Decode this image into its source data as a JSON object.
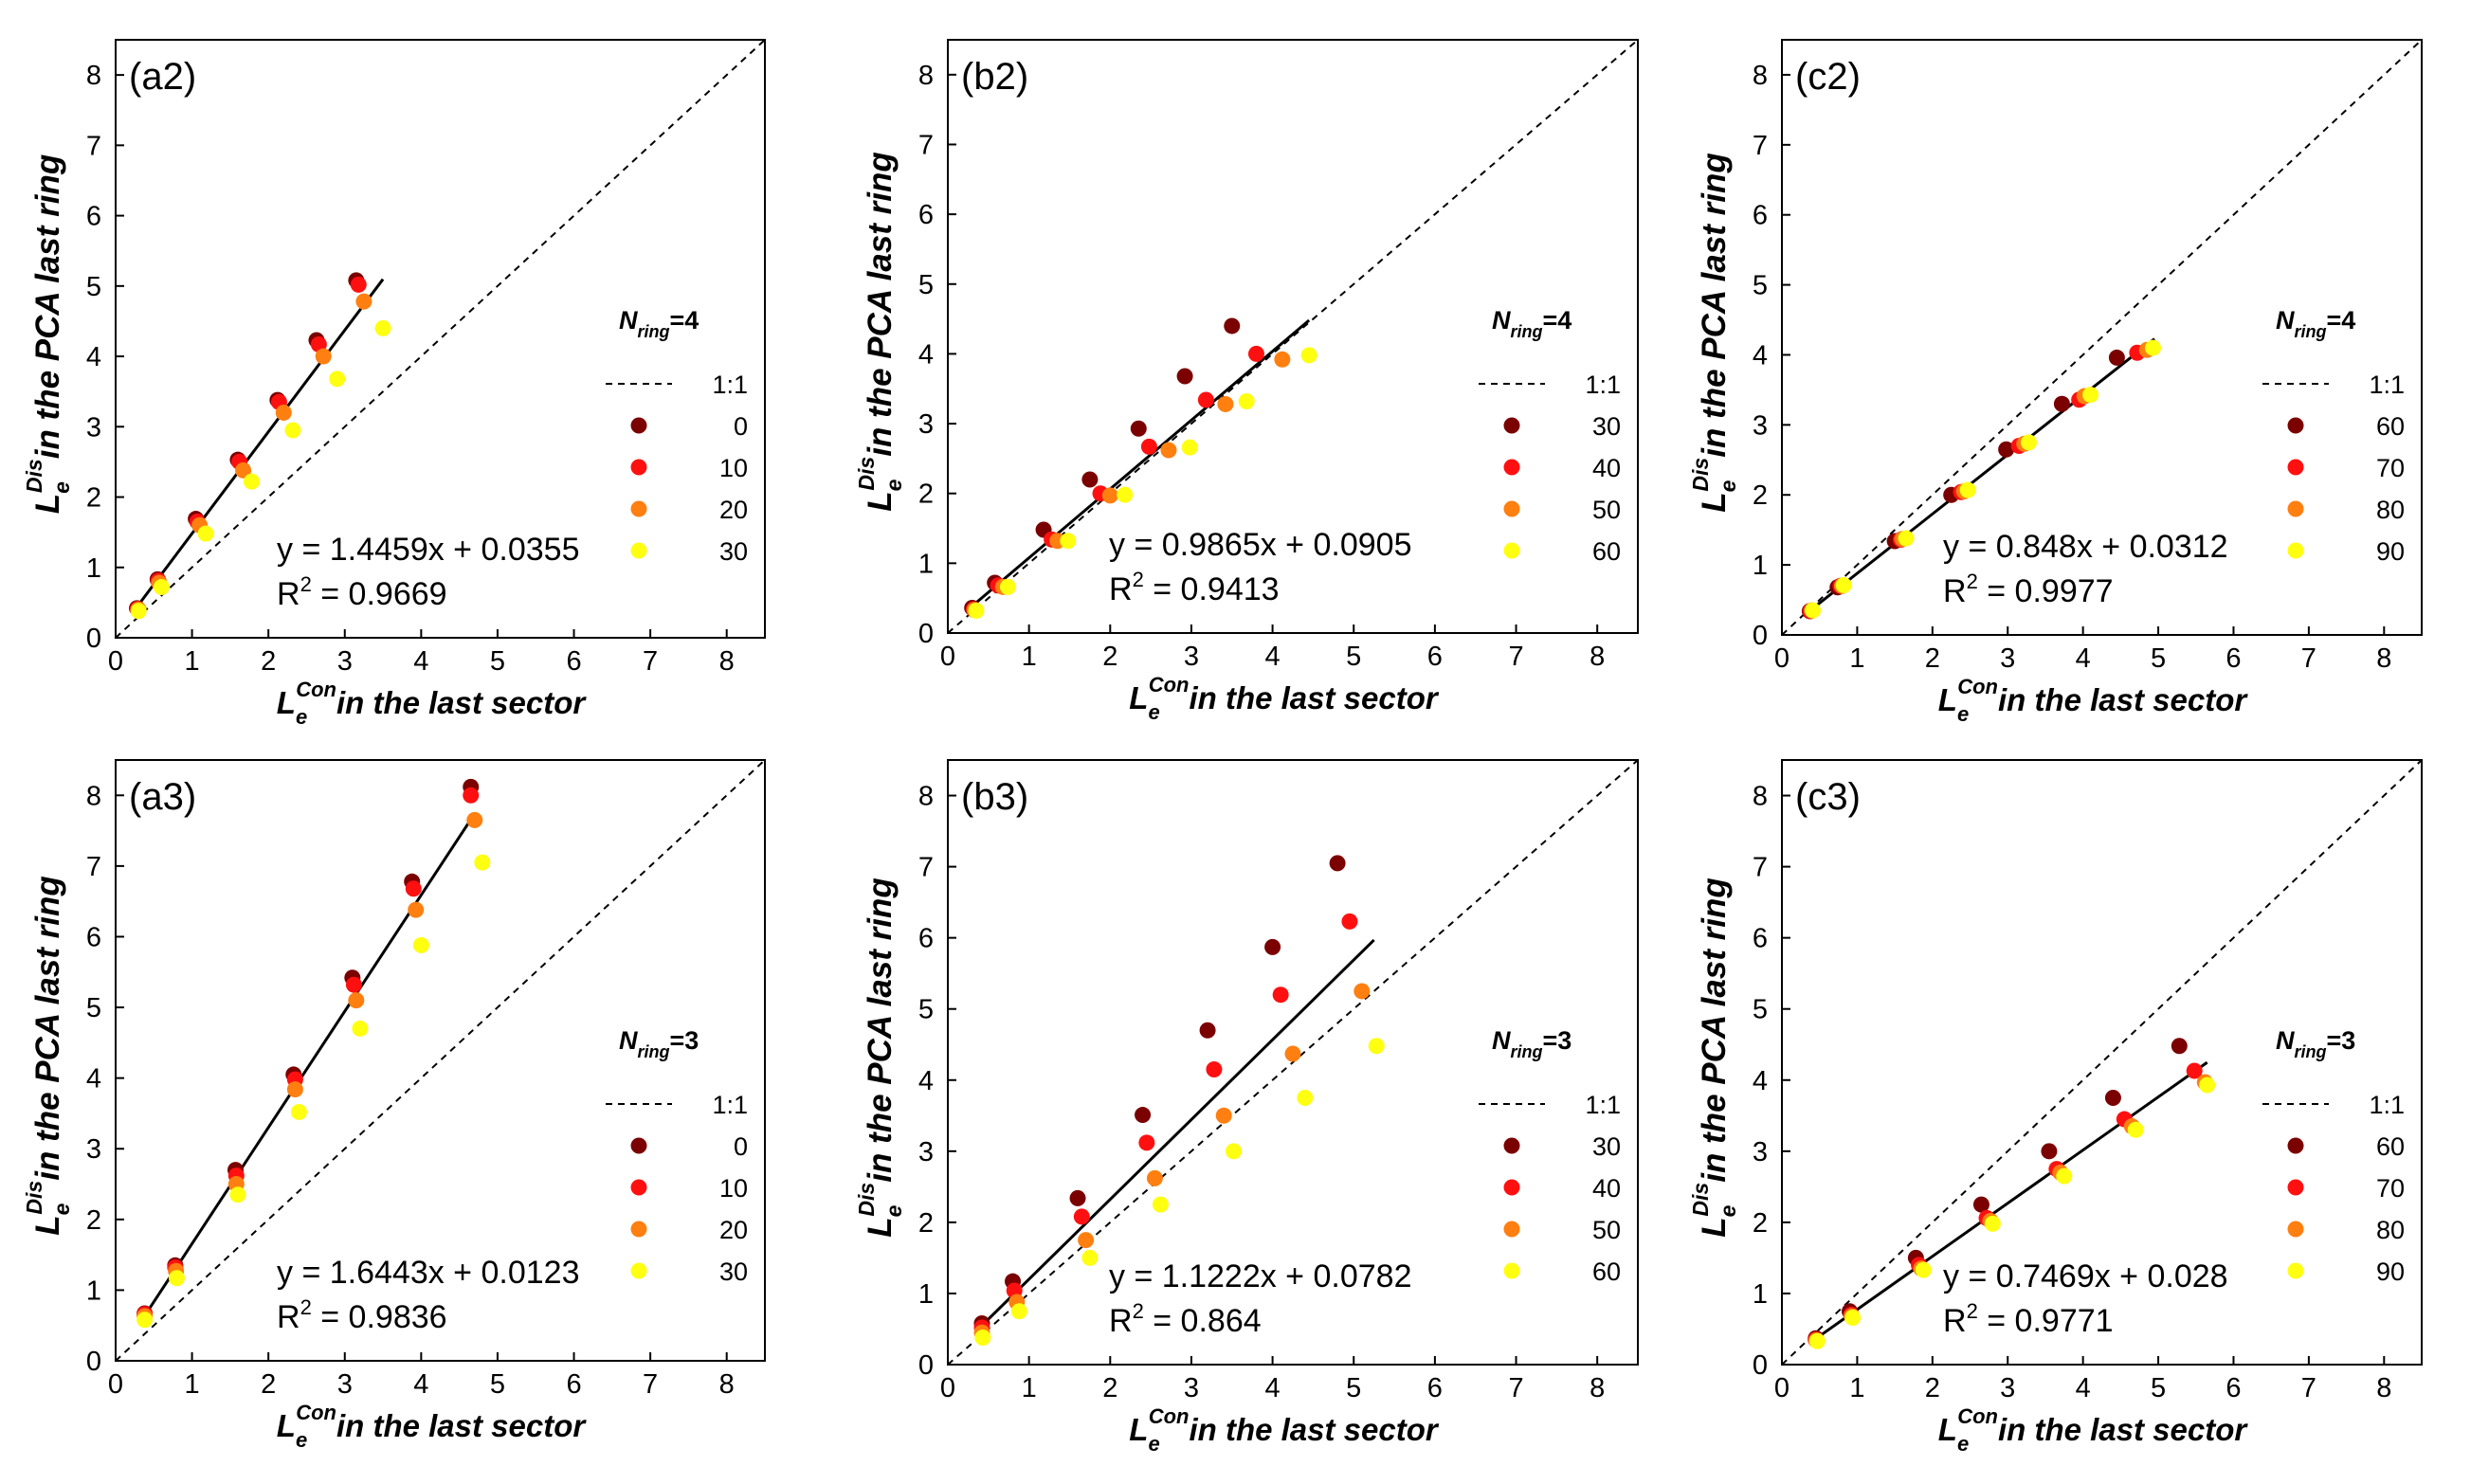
{
  "colors": {
    "c0": "#7b0000",
    "c1": "#ff1010",
    "c2": "#ff7f10",
    "c3": "#ffff10"
  },
  "chart_data": [
    {
      "type": "scatter",
      "panel_label": "(a2)",
      "xlabel_sym": "L",
      "xlabel_sub": "e",
      "xlabel_sup": "Con",
      "xlabel_text": "in the last sector",
      "ylabel_sym": "L",
      "ylabel_sub": "e",
      "ylabel_sup": "Dis",
      "ylabel_text": "in the PCA last ring",
      "xlim": [
        0,
        8.5
      ],
      "ylim": [
        0,
        8.5
      ],
      "xticks": [
        "0",
        "1",
        "2",
        "3",
        "4",
        "5",
        "6",
        "7",
        "8"
      ],
      "yticks": [
        "0",
        "1",
        "2",
        "3",
        "4",
        "5",
        "6",
        "7",
        "8"
      ],
      "legend_title_sym": "N",
      "legend_title_sub": "ring",
      "legend_title_tail": "=4",
      "legend_line_label": "1:1",
      "equation": "y = 1.4459x + 0.0355",
      "r2_label": "R",
      "r2_sup": "2",
      "r2_value": " = 0.9669",
      "fit": {
        "slope": 1.4459,
        "intercept": 0.0355,
        "x_range": [
          0.28,
          3.5
        ]
      },
      "series": [
        {
          "name": "0",
          "points": [
            [
              0.28,
              0.42
            ],
            [
              0.55,
              0.83
            ],
            [
              1.05,
              1.69
            ],
            [
              1.6,
              2.53
            ],
            [
              2.12,
              3.38
            ],
            [
              2.63,
              4.23
            ],
            [
              3.15,
              5.08
            ]
          ]
        },
        {
          "name": "10",
          "points": [
            [
              0.29,
              0.41
            ],
            [
              0.56,
              0.81
            ],
            [
              1.07,
              1.65
            ],
            [
              1.62,
              2.5
            ],
            [
              2.14,
              3.35
            ],
            [
              2.66,
              4.17
            ],
            [
              3.18,
              5.02
            ]
          ]
        },
        {
          "name": "20",
          "points": [
            [
              0.3,
              0.4
            ],
            [
              0.57,
              0.78
            ],
            [
              1.1,
              1.6
            ],
            [
              1.67,
              2.38
            ],
            [
              2.2,
              3.2
            ],
            [
              2.72,
              4.0
            ],
            [
              3.25,
              4.78
            ]
          ]
        },
        {
          "name": "30",
          "points": [
            [
              0.3,
              0.38
            ],
            [
              0.6,
              0.72
            ],
            [
              1.18,
              1.48
            ],
            [
              1.78,
              2.22
            ],
            [
              2.32,
              2.95
            ],
            [
              2.9,
              3.68
            ],
            [
              3.5,
              4.4
            ]
          ]
        }
      ]
    },
    {
      "type": "scatter",
      "panel_label": "(b2)",
      "xlabel_sym": "L",
      "xlabel_sub": "e",
      "xlabel_sup": "Con",
      "xlabel_text": "in the last sector",
      "ylabel_sym": "L",
      "ylabel_sub": "e",
      "ylabel_sup": "Dis",
      "ylabel_text": "in the PCA last ring",
      "xlim": [
        0,
        8.5
      ],
      "ylim": [
        0,
        8.5
      ],
      "xticks": [
        "0",
        "1",
        "2",
        "3",
        "4",
        "5",
        "6",
        "7",
        "8"
      ],
      "yticks": [
        "0",
        "1",
        "2",
        "3",
        "4",
        "5",
        "6",
        "7",
        "8"
      ],
      "legend_title_sym": "N",
      "legend_title_sub": "ring",
      "legend_title_tail": "=4",
      "legend_line_label": "1:1",
      "equation": "y = 0.9865x + 0.0905",
      "r2_label": "R",
      "r2_sup": "2",
      "r2_value": " = 0.9413",
      "fit": {
        "slope": 0.9865,
        "intercept": 0.0905,
        "x_range": [
          0.28,
          4.45
        ]
      },
      "series": [
        {
          "name": "30",
          "points": [
            [
              0.3,
              0.36
            ],
            [
              0.58,
              0.72
            ],
            [
              1.18,
              1.48
            ],
            [
              1.75,
              2.2
            ],
            [
              2.35,
              2.93
            ],
            [
              2.92,
              3.68
            ],
            [
              3.5,
              4.4
            ]
          ]
        },
        {
          "name": "40",
          "points": [
            [
              0.32,
              0.34
            ],
            [
              0.62,
              0.68
            ],
            [
              1.28,
              1.34
            ],
            [
              1.88,
              2.0
            ],
            [
              2.48,
              2.67
            ],
            [
              3.18,
              3.34
            ],
            [
              3.8,
              4.0
            ]
          ]
        },
        {
          "name": "50",
          "points": [
            [
              0.33,
              0.33
            ],
            [
              0.68,
              0.66
            ],
            [
              1.35,
              1.32
            ],
            [
              2.0,
              1.97
            ],
            [
              2.72,
              2.62
            ],
            [
              3.42,
              3.28
            ],
            [
              4.12,
              3.92
            ]
          ]
        },
        {
          "name": "60",
          "points": [
            [
              0.35,
              0.32
            ],
            [
              0.74,
              0.66
            ],
            [
              1.48,
              1.32
            ],
            [
              2.18,
              1.98
            ],
            [
              2.98,
              2.66
            ],
            [
              3.68,
              3.32
            ],
            [
              4.45,
              3.98
            ]
          ]
        }
      ]
    },
    {
      "type": "scatter",
      "panel_label": "(c2)",
      "xlabel_sym": "L",
      "xlabel_sub": "e",
      "xlabel_sup": "Con",
      "xlabel_text": "in the last sector",
      "ylabel_sym": "L",
      "ylabel_sub": "e",
      "ylabel_sup": "Dis",
      "ylabel_text": "in the PCA last ring",
      "xlim": [
        0,
        8.5
      ],
      "ylim": [
        0,
        8.5
      ],
      "xticks": [
        "0",
        "1",
        "2",
        "3",
        "4",
        "5",
        "6",
        "7",
        "8"
      ],
      "yticks": [
        "0",
        "1",
        "2",
        "3",
        "4",
        "5",
        "6",
        "7",
        "8"
      ],
      "legend_title_sym": "N",
      "legend_title_sub": "ring",
      "legend_title_tail": "=4",
      "legend_line_label": "1:1",
      "equation": "y = 0.848x + 0.0312",
      "r2_label": "R",
      "r2_sup": "2",
      "r2_value": " = 0.9977",
      "fit": {
        "slope": 0.848,
        "intercept": 0.0312,
        "x_range": [
          0.35,
          4.95
        ]
      },
      "series": [
        {
          "name": "60",
          "points": [
            [
              0.37,
              0.34
            ],
            [
              0.74,
              0.68
            ],
            [
              1.5,
              1.34
            ],
            [
              2.25,
              2.0
            ],
            [
              2.98,
              2.65
            ],
            [
              3.72,
              3.3
            ],
            [
              4.45,
              3.96
            ]
          ]
        },
        {
          "name": "70",
          "points": [
            [
              0.38,
              0.34
            ],
            [
              0.78,
              0.7
            ],
            [
              1.58,
              1.36
            ],
            [
              2.38,
              2.04
            ],
            [
              3.15,
              2.7
            ],
            [
              3.95,
              3.36
            ],
            [
              4.72,
              4.03
            ]
          ]
        },
        {
          "name": "80",
          "points": [
            [
              0.4,
              0.35
            ],
            [
              0.8,
              0.7
            ],
            [
              1.6,
              1.37
            ],
            [
              2.42,
              2.05
            ],
            [
              3.22,
              2.73
            ],
            [
              4.02,
              3.41
            ],
            [
              4.85,
              4.07
            ]
          ]
        },
        {
          "name": "90",
          "points": [
            [
              0.41,
              0.35
            ],
            [
              0.82,
              0.71
            ],
            [
              1.65,
              1.38
            ],
            [
              2.47,
              2.07
            ],
            [
              3.28,
              2.75
            ],
            [
              4.1,
              3.43
            ],
            [
              4.93,
              4.1
            ]
          ]
        }
      ]
    },
    {
      "type": "scatter",
      "panel_label": "(a3)",
      "xlabel_sym": "L",
      "xlabel_sub": "e",
      "xlabel_sup": "Con",
      "xlabel_text": "in the last sector",
      "ylabel_sym": "L",
      "ylabel_sub": "e",
      "ylabel_sup": "Dis",
      "ylabel_text": "in the PCA last ring",
      "xlim": [
        0,
        8.5
      ],
      "ylim": [
        0,
        8.5
      ],
      "xticks": [
        "0",
        "1",
        "2",
        "3",
        "4",
        "5",
        "6",
        "7",
        "8"
      ],
      "yticks": [
        "0",
        "1",
        "2",
        "3",
        "4",
        "5",
        "6",
        "7",
        "8"
      ],
      "legend_title_sym": "N",
      "legend_title_sub": "ring",
      "legend_title_tail": "=3",
      "legend_line_label": "1:1",
      "equation": "y = 1.6443x + 0.0123",
      "r2_label": "R",
      "r2_sup": "2",
      "r2_value": " = 0.9836",
      "fit": {
        "slope": 1.6443,
        "intercept": 0.0123,
        "x_range": [
          0.35,
          4.7
        ]
      },
      "series": [
        {
          "name": "0",
          "points": [
            [
              0.38,
              0.67
            ],
            [
              0.78,
              1.35
            ],
            [
              1.57,
              2.7
            ],
            [
              2.33,
              4.05
            ],
            [
              3.1,
              5.42
            ],
            [
              3.88,
              6.78
            ],
            [
              4.65,
              8.12
            ]
          ]
        },
        {
          "name": "10",
          "points": [
            [
              0.38,
              0.66
            ],
            [
              0.78,
              1.32
            ],
            [
              1.58,
              2.62
            ],
            [
              2.35,
              3.98
            ],
            [
              3.12,
              5.32
            ],
            [
              3.9,
              6.68
            ],
            [
              4.65,
              8.0
            ]
          ]
        },
        {
          "name": "20",
          "points": [
            [
              0.38,
              0.63
            ],
            [
              0.79,
              1.27
            ],
            [
              1.58,
              2.5
            ],
            [
              2.35,
              3.84
            ],
            [
              3.15,
              5.1
            ],
            [
              3.93,
              6.38
            ],
            [
              4.7,
              7.65
            ]
          ]
        },
        {
          "name": "30",
          "points": [
            [
              0.38,
              0.58
            ],
            [
              0.8,
              1.17
            ],
            [
              1.6,
              2.35
            ],
            [
              2.4,
              3.52
            ],
            [
              3.2,
              4.7
            ],
            [
              4.0,
              5.88
            ],
            [
              4.8,
              7.05
            ]
          ]
        }
      ]
    },
    {
      "type": "scatter",
      "panel_label": "(b3)",
      "xlabel_sym": "L",
      "xlabel_sub": "e",
      "xlabel_sup": "Con",
      "xlabel_text": "in the last sector",
      "ylabel_sym": "L",
      "ylabel_sub": "e",
      "ylabel_sup": "Dis",
      "ylabel_text": "in the PCA last ring",
      "xlim": [
        0,
        8.5
      ],
      "ylim": [
        0,
        8.5
      ],
      "xticks": [
        "0",
        "1",
        "2",
        "3",
        "4",
        "5",
        "6",
        "7",
        "8"
      ],
      "yticks": [
        "0",
        "1",
        "2",
        "3",
        "4",
        "5",
        "6",
        "7",
        "8"
      ],
      "legend_title_sym": "N",
      "legend_title_sub": "ring",
      "legend_title_tail": "=3",
      "legend_line_label": "1:1",
      "equation": "y = 1.1222x + 0.0782",
      "r2_label": "R",
      "r2_sup": "2",
      "r2_value": " = 0.864",
      "fit": {
        "slope": 1.1222,
        "intercept": 0.0782,
        "x_range": [
          0.4,
          5.25
        ]
      },
      "series": [
        {
          "name": "30",
          "points": [
            [
              0.42,
              0.58
            ],
            [
              0.8,
              1.17
            ],
            [
              1.6,
              2.34
            ],
            [
              2.4,
              3.51
            ],
            [
              3.2,
              4.7
            ],
            [
              4.0,
              5.87
            ],
            [
              4.8,
              7.05
            ]
          ]
        },
        {
          "name": "40",
          "points": [
            [
              0.42,
              0.52
            ],
            [
              0.82,
              1.04
            ],
            [
              1.65,
              2.08
            ],
            [
              2.45,
              3.12
            ],
            [
              3.28,
              4.15
            ],
            [
              4.1,
              5.2
            ],
            [
              4.95,
              6.23
            ]
          ]
        },
        {
          "name": "50",
          "points": [
            [
              0.42,
              0.45
            ],
            [
              0.85,
              0.88
            ],
            [
              1.7,
              1.75
            ],
            [
              2.55,
              2.62
            ],
            [
              3.4,
              3.5
            ],
            [
              4.25,
              4.37
            ],
            [
              5.1,
              5.25
            ]
          ]
        },
        {
          "name": "60",
          "points": [
            [
              0.43,
              0.38
            ],
            [
              0.88,
              0.75
            ],
            [
              1.75,
              1.5
            ],
            [
              2.62,
              2.25
            ],
            [
              3.52,
              3.0
            ],
            [
              4.4,
              3.75
            ],
            [
              5.28,
              4.48
            ]
          ]
        }
      ]
    },
    {
      "type": "scatter",
      "panel_label": "(c3)",
      "xlabel_sym": "L",
      "xlabel_sub": "e",
      "xlabel_sup": "Con",
      "xlabel_text": "in the last sector",
      "ylabel_sym": "L",
      "ylabel_sub": "e",
      "ylabel_sup": "Dis",
      "ylabel_text": "in the PCA last ring",
      "xlim": [
        0,
        8.5
      ],
      "ylim": [
        0,
        8.5
      ],
      "xticks": [
        "0",
        "1",
        "2",
        "3",
        "4",
        "5",
        "6",
        "7",
        "8"
      ],
      "yticks": [
        "0",
        "1",
        "2",
        "3",
        "4",
        "5",
        "6",
        "7",
        "8"
      ],
      "legend_title_sym": "N",
      "legend_title_sub": "ring",
      "legend_title_tail": "=3",
      "legend_line_label": "1:1",
      "equation": "y = 0.7469x + 0.028",
      "r2_label": "R",
      "r2_sup": "2",
      "r2_value": " = 0.9771",
      "fit": {
        "slope": 0.7469,
        "intercept": 0.028,
        "x_range": [
          0.43,
          5.65
        ]
      },
      "series": [
        {
          "name": "60",
          "points": [
            [
              0.45,
              0.37
            ],
            [
              0.9,
              0.75
            ],
            [
              1.78,
              1.5
            ],
            [
              2.65,
              2.25
            ],
            [
              3.55,
              3.0
            ],
            [
              4.4,
              3.75
            ],
            [
              5.28,
              4.48
            ]
          ]
        },
        {
          "name": "70",
          "points": [
            [
              0.45,
              0.35
            ],
            [
              0.92,
              0.7
            ],
            [
              1.82,
              1.4
            ],
            [
              2.72,
              2.06
            ],
            [
              3.65,
              2.75
            ],
            [
              4.55,
              3.45
            ],
            [
              5.48,
              4.13
            ]
          ]
        },
        {
          "name": "80",
          "points": [
            [
              0.46,
              0.34
            ],
            [
              0.93,
              0.68
            ],
            [
              1.85,
              1.35
            ],
            [
              2.77,
              2.02
            ],
            [
              3.7,
              2.7
            ],
            [
              4.65,
              3.35
            ],
            [
              5.62,
              3.97
            ]
          ]
        },
        {
          "name": "90",
          "points": [
            [
              0.47,
              0.33
            ],
            [
              0.94,
              0.66
            ],
            [
              1.88,
              1.33
            ],
            [
              2.8,
              1.98
            ],
            [
              3.75,
              2.65
            ],
            [
              4.7,
              3.3
            ],
            [
              5.65,
              3.93
            ]
          ]
        }
      ]
    }
  ]
}
